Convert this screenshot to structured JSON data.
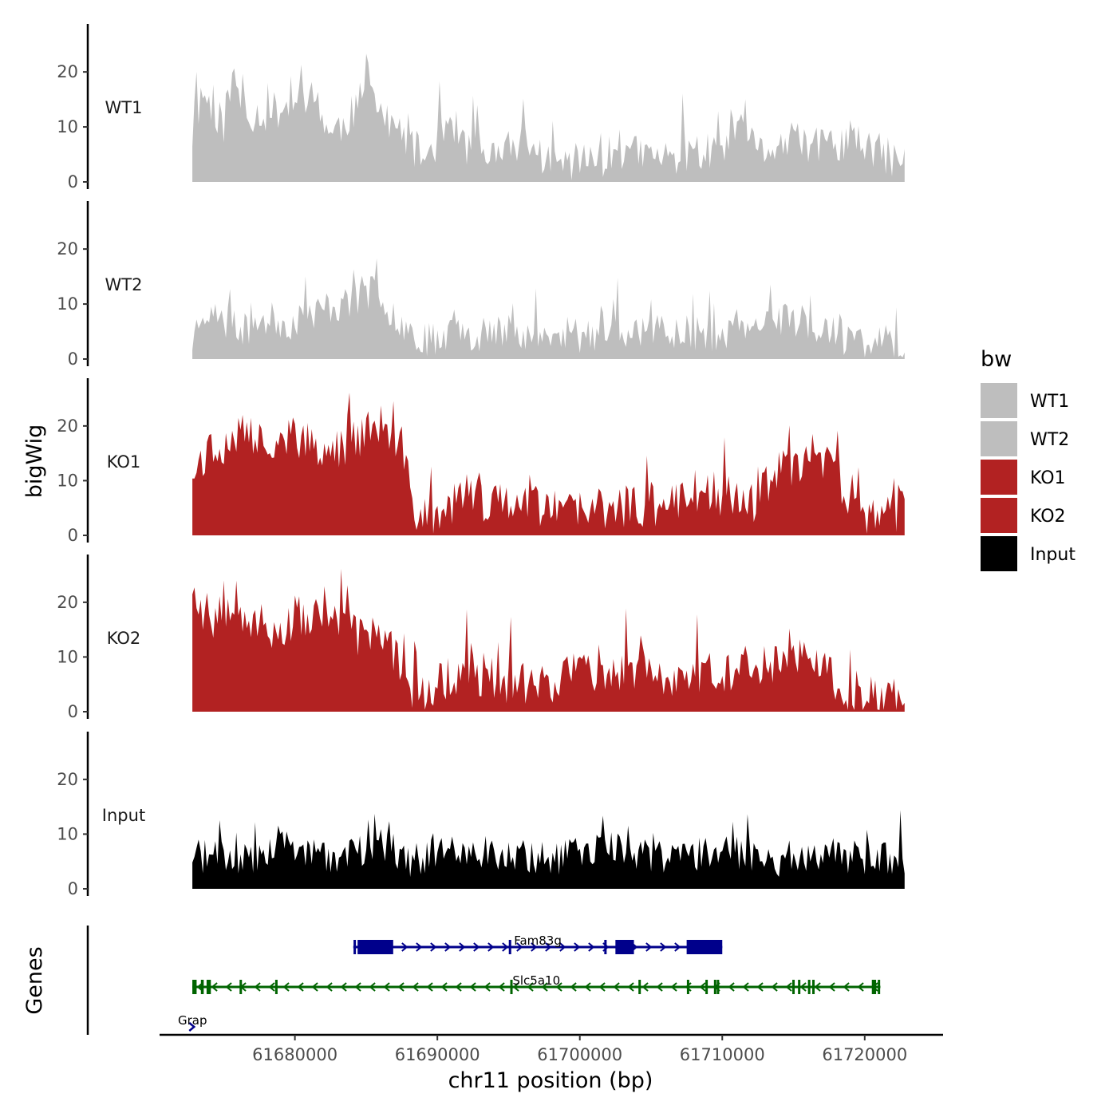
{
  "chart_data": {
    "type": "area",
    "ylabel": "bigWig",
    "xlabel": "chr11 position (bp)",
    "xlim": [
      61670500,
      61725500
    ],
    "data_range": [
      61672800,
      61722800
    ],
    "ylim": [
      0,
      28
    ],
    "yticks": [
      "0",
      "10",
      "20"
    ],
    "xticks": [
      "61680000",
      "61690000",
      "61700000",
      "61710000",
      "61720000"
    ],
    "legend": {
      "title": "bw",
      "position": "right",
      "entries": [
        {
          "label": "WT1",
          "color": "#bebebe"
        },
        {
          "label": "WT2",
          "color": "#bebebe"
        },
        {
          "label": "KO1",
          "color": "#b22222"
        },
        {
          "label": "KO2",
          "color": "#b22222"
        },
        {
          "label": "Input",
          "color": "#000000"
        }
      ]
    },
    "series": [
      {
        "name": "WT1",
        "color": "#bebebe",
        "profile": [
          [
            61672800,
            8
          ],
          [
            61673500,
            16
          ],
          [
            61675000,
            10
          ],
          [
            61675700,
            19
          ],
          [
            61676500,
            12
          ],
          [
            61678000,
            12
          ],
          [
            61680000,
            14
          ],
          [
            61681500,
            15
          ],
          [
            61682500,
            8
          ],
          [
            61684000,
            12
          ],
          [
            61685300,
            17
          ],
          [
            61686500,
            10
          ],
          [
            61688000,
            7
          ],
          [
            61689000,
            4
          ],
          [
            61690000,
            7
          ],
          [
            61690700,
            12
          ],
          [
            61692000,
            6
          ],
          [
            61694000,
            4
          ],
          [
            61696000,
            7
          ],
          [
            61698000,
            3
          ],
          [
            61700000,
            3
          ],
          [
            61703000,
            5
          ],
          [
            61706000,
            4
          ],
          [
            61708000,
            5
          ],
          [
            61710000,
            5
          ],
          [
            61711500,
            8
          ],
          [
            61712500,
            5
          ],
          [
            61715000,
            7
          ],
          [
            61717000,
            6
          ],
          [
            61719000,
            7
          ],
          [
            61721000,
            5
          ],
          [
            61722800,
            3
          ]
        ],
        "noise": 4.5,
        "seed": 11
      },
      {
        "name": "WT2",
        "color": "#bebebe",
        "profile": [
          [
            61672800,
            3
          ],
          [
            61673500,
            9
          ],
          [
            61675000,
            6
          ],
          [
            61676500,
            5
          ],
          [
            61678000,
            7
          ],
          [
            61680000,
            6
          ],
          [
            61682000,
            9
          ],
          [
            61684000,
            10
          ],
          [
            61685500,
            12
          ],
          [
            61686500,
            9
          ],
          [
            61688000,
            5
          ],
          [
            61689500,
            3
          ],
          [
            61691000,
            5
          ],
          [
            61693000,
            4
          ],
          [
            61695000,
            5
          ],
          [
            61697000,
            4
          ],
          [
            61700000,
            3
          ],
          [
            61703000,
            5
          ],
          [
            61706000,
            5
          ],
          [
            61709000,
            4
          ],
          [
            61712000,
            5
          ],
          [
            61715000,
            7
          ],
          [
            61717000,
            5
          ],
          [
            61719000,
            3
          ],
          [
            61721000,
            3
          ],
          [
            61722800,
            2
          ]
        ],
        "noise": 4.0,
        "seed": 23
      },
      {
        "name": "KO1",
        "color": "#b22222",
        "profile": [
          [
            61672800,
            12
          ],
          [
            61674000,
            15
          ],
          [
            61676000,
            18
          ],
          [
            61678000,
            17
          ],
          [
            61680000,
            18
          ],
          [
            61682000,
            14
          ],
          [
            61684000,
            17
          ],
          [
            61686000,
            20
          ],
          [
            61687500,
            14
          ],
          [
            61688500,
            4
          ],
          [
            61690000,
            3
          ],
          [
            61692000,
            7
          ],
          [
            61694000,
            5
          ],
          [
            61696000,
            7
          ],
          [
            61698000,
            4
          ],
          [
            61700000,
            4
          ],
          [
            61703000,
            5
          ],
          [
            61706000,
            5
          ],
          [
            61708000,
            8
          ],
          [
            61710000,
            7
          ],
          [
            61712000,
            5
          ],
          [
            61714000,
            12
          ],
          [
            61716000,
            12
          ],
          [
            61717000,
            14
          ],
          [
            61718500,
            8
          ],
          [
            61719500,
            3
          ],
          [
            61721000,
            2
          ],
          [
            61722800,
            5
          ]
        ],
        "noise": 5.0,
        "seed": 37
      },
      {
        "name": "KO2",
        "color": "#b22222",
        "profile": [
          [
            61672800,
            22
          ],
          [
            61674000,
            16
          ],
          [
            61675500,
            20
          ],
          [
            61677000,
            16
          ],
          [
            61679000,
            14
          ],
          [
            61681000,
            17
          ],
          [
            61683000,
            16
          ],
          [
            61684500,
            13
          ],
          [
            61686000,
            12
          ],
          [
            61687500,
            9
          ],
          [
            61688500,
            2
          ],
          [
            61690000,
            5
          ],
          [
            61692000,
            7
          ],
          [
            61694000,
            5
          ],
          [
            61696000,
            5
          ],
          [
            61698000,
            5
          ],
          [
            61700000,
            8
          ],
          [
            61702000,
            6
          ],
          [
            61704000,
            7
          ],
          [
            61706000,
            5
          ],
          [
            61708000,
            7
          ],
          [
            61710000,
            7
          ],
          [
            61712000,
            8
          ],
          [
            61714000,
            9
          ],
          [
            61716000,
            11
          ],
          [
            61717500,
            6
          ],
          [
            61719000,
            3
          ],
          [
            61721000,
            2
          ],
          [
            61722800,
            2
          ]
        ],
        "noise": 5.0,
        "seed": 53
      },
      {
        "name": "Input",
        "color": "#000000",
        "profile": [
          [
            61672800,
            6
          ],
          [
            61675000,
            5
          ],
          [
            61677000,
            5
          ],
          [
            61679000,
            9
          ],
          [
            61680500,
            6
          ],
          [
            61682000,
            5
          ],
          [
            61684000,
            6
          ],
          [
            61686000,
            8
          ],
          [
            61688000,
            5
          ],
          [
            61690000,
            6
          ],
          [
            61692000,
            7
          ],
          [
            61694000,
            6
          ],
          [
            61696000,
            6
          ],
          [
            61698000,
            5
          ],
          [
            61700000,
            6
          ],
          [
            61702000,
            8
          ],
          [
            61704000,
            6
          ],
          [
            61706000,
            5
          ],
          [
            61708000,
            6
          ],
          [
            61710000,
            7
          ],
          [
            61712000,
            6
          ],
          [
            61714000,
            5
          ],
          [
            61716000,
            6
          ],
          [
            61718000,
            6
          ],
          [
            61720000,
            5
          ],
          [
            61722800,
            5
          ]
        ],
        "noise": 4.0,
        "seed": 71
      }
    ],
    "genes_track": {
      "label": "Genes",
      "genes": [
        {
          "name": "Fam83g",
          "strand": "+",
          "color": "#00008b",
          "start": 61684100,
          "end": 61710000,
          "exons": [
            [
              61684400,
              61686900
            ],
            [
              61702500,
              61703800
            ],
            [
              61707500,
              61710000
            ]
          ],
          "small_exons": [
            61684200,
            61695100,
            61701800
          ]
        },
        {
          "name": "Slc5a10",
          "strand": "-",
          "color": "#006400",
          "start": 61672800,
          "end": 61721100,
          "exons": [
            [
              61672800,
              61673100
            ],
            [
              61673400,
              61673600
            ],
            [
              61673800,
              61674100
            ],
            [
              61720500,
              61720800
            ]
          ],
          "small_exons": [
            61676200,
            61678700,
            61695200,
            61704200,
            61707600,
            61708900,
            61709500,
            61709700,
            61715000,
            61715400,
            61716100,
            61716400,
            61721000
          ]
        },
        {
          "name": "Grap",
          "strand": "+",
          "color": "#00008b",
          "start": 61672700,
          "end": 61672900,
          "exons": [],
          "small_exons": []
        }
      ]
    }
  }
}
